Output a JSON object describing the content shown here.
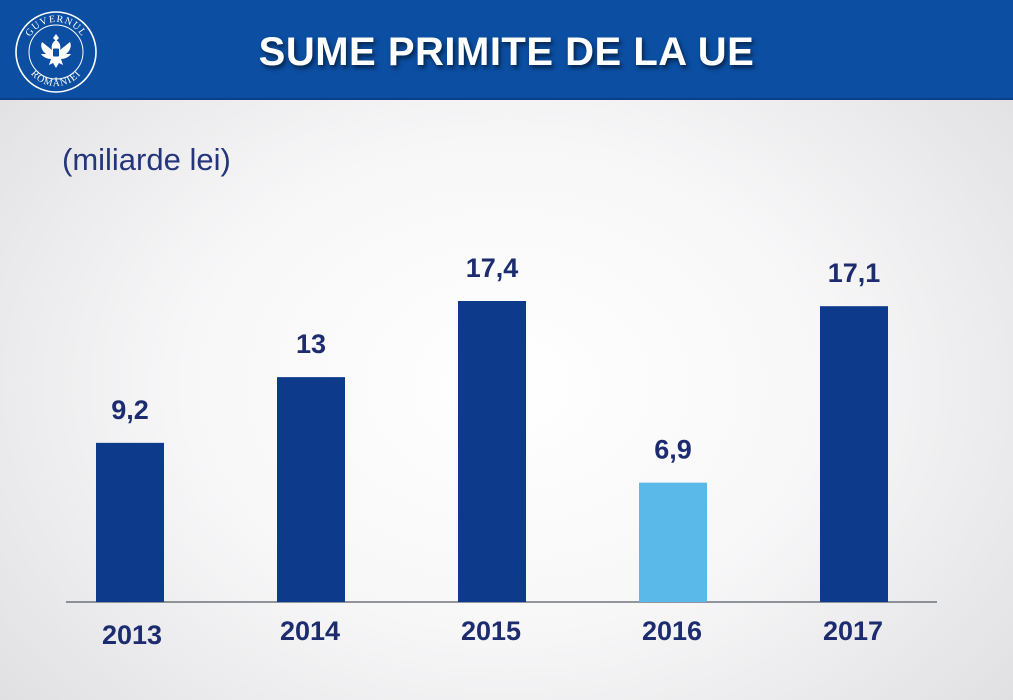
{
  "header": {
    "title": "SUME PRIMITE DE LA UE",
    "logo_text_top": "GUVERNUL",
    "logo_text_bottom": "ROMÂNIEI"
  },
  "colors": {
    "header_bg": "#0b4ea2",
    "bar_dark": "#0d3a8a",
    "bar_light": "#5bb9ea",
    "text": "#1c2c6e"
  },
  "chart_data": {
    "type": "bar",
    "title": "SUME PRIMITE DE LA UE",
    "unit_label": "(miliarde lei)",
    "categories": [
      "2013",
      "2014",
      "2015",
      "2016",
      "2017"
    ],
    "values": [
      9.2,
      13,
      17.4,
      6.9,
      17.1
    ],
    "value_labels": [
      "9,2",
      "13",
      "17,4",
      "6,9",
      "17,1"
    ],
    "highlight": [
      false,
      false,
      false,
      true,
      false
    ],
    "ylim": [
      0,
      17.4
    ],
    "grid": false,
    "legend": "none"
  }
}
